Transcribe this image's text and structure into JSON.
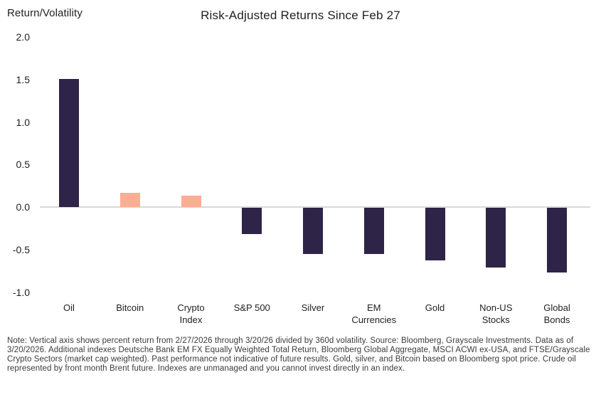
{
  "header": {
    "ylabel": "Return/Volatility",
    "title": "Risk-Adjusted Returns Since Feb 27"
  },
  "chart_data": {
    "type": "bar",
    "title": "Risk-Adjusted Returns Since Feb 27",
    "xlabel": "",
    "ylabel": "Return/Volatility",
    "categories": [
      "Oil",
      "Bitcoin",
      "Crypto Index",
      "S&P 500",
      "Silver",
      "EM Currencies",
      "Gold",
      "Non-US Stocks",
      "Global Bonds"
    ],
    "label_lines": [
      [
        "Oil"
      ],
      [
        "Bitcoin"
      ],
      [
        "Crypto",
        "Index"
      ],
      [
        "S&P 500"
      ],
      [
        "Silver"
      ],
      [
        "EM",
        "Currencies"
      ],
      [
        "Gold"
      ],
      [
        "Non-US",
        "Stocks"
      ],
      [
        "Global",
        "Bonds"
      ]
    ],
    "values": [
      1.51,
      0.17,
      0.13,
      -0.31,
      -0.54,
      -0.54,
      -0.62,
      -0.7,
      -0.76
    ],
    "bar_colors": [
      "#2e2447",
      "#fbae93",
      "#fbae93",
      "#2e2447",
      "#2e2447",
      "#2e2447",
      "#2e2447",
      "#2e2447",
      "#2e2447"
    ],
    "ytick_labels": [
      "2.0",
      "1.5",
      "1.0",
      "0.5",
      "0.0",
      "-0.5",
      "-1.0"
    ],
    "yticks": [
      2.0,
      1.5,
      1.0,
      0.5,
      0.0,
      -0.5,
      -1.0
    ],
    "ylim": [
      -1.0,
      2.0
    ],
    "grid": false,
    "legend": false,
    "colors": {
      "dark_bar": "#2e2447",
      "accent_bar": "#fbae93",
      "axis_line": "#d8d8d8",
      "text": "#1f1f1f",
      "note_text": "#3a3a3a"
    }
  },
  "note": {
    "text": "Note: Vertical axis shows percent return from 2/27/2026 through 3/20/26 divided by 360d volatility. Source: Bloomberg, Grayscale Investments. Data as of 3/20/2026. Additional indexes Deutsche Bank EM FX Equally Weighted Total Return, Bloomberg Global Aggregate, MSCI ACWI ex-USA, and FTSE/Grayscale Crypto Sectors (market cap weighted). Past performance not indicative of future results. Gold, silver, and Bitcoin based on Bloomberg spot price. Crude oil represented by front month Brent future. Indexes are unmanaged and you cannot invest directly in an index."
  }
}
